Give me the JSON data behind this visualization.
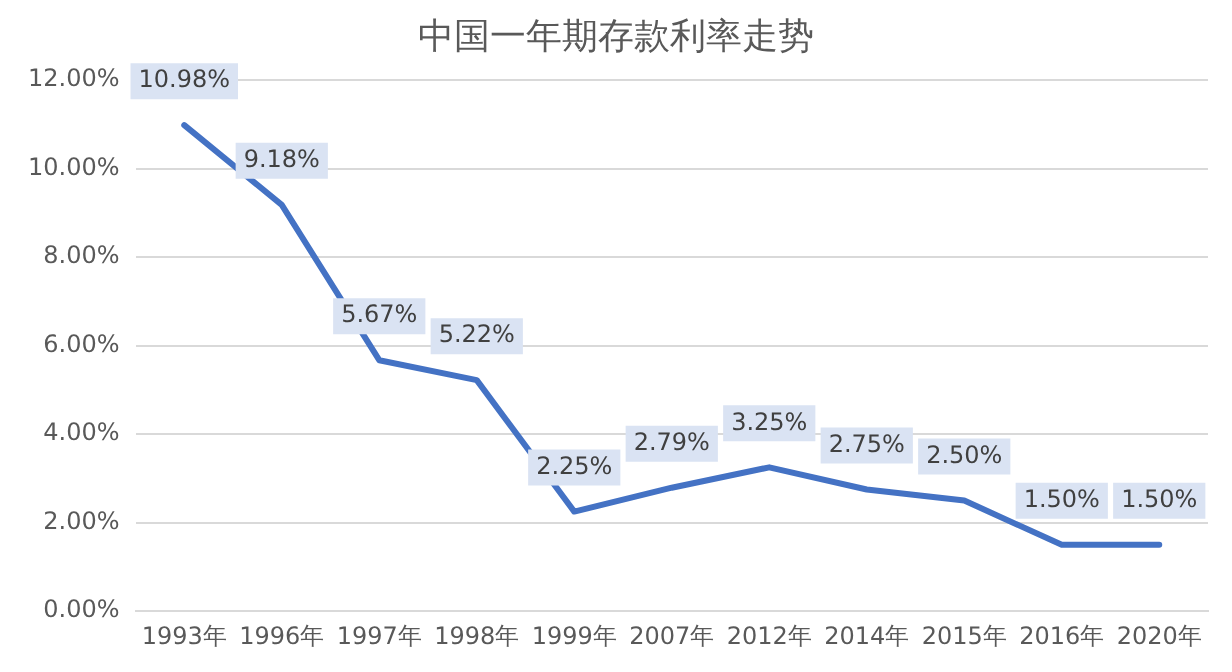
{
  "chart_data": {
    "type": "line",
    "title": "中国一年期存款利率走势",
    "categories": [
      "1993年",
      "1996年",
      "1997年",
      "1998年",
      "1999年",
      "2007年",
      "2012年",
      "2014年",
      "2015年",
      "2016年",
      "2020年"
    ],
    "series": [
      {
        "color": "#4472c4",
        "values": [
          10.98,
          9.18,
          5.67,
          5.22,
          2.25,
          2.79,
          3.25,
          2.75,
          2.5,
          1.5,
          1.5
        ],
        "value_labels": [
          "10.98%",
          "9.18%",
          "5.67%",
          "5.22%",
          "2.25%",
          "2.79%",
          "3.25%",
          "2.75%",
          "2.50%",
          "1.50%",
          "1.50%"
        ]
      }
    ],
    "ylim": [
      0,
      12
    ],
    "yticks": [
      {
        "value": 0,
        "label": "0.00%"
      },
      {
        "value": 2,
        "label": "2.00%"
      },
      {
        "value": 4,
        "label": "4.00%"
      },
      {
        "value": 6,
        "label": "6.00%"
      },
      {
        "value": 8,
        "label": "8.00%"
      },
      {
        "value": 10,
        "label": "10.00%"
      },
      {
        "value": 12,
        "label": "12.00%"
      }
    ],
    "grid": "y",
    "legend": false,
    "marker": "none",
    "line_style": "solid"
  }
}
